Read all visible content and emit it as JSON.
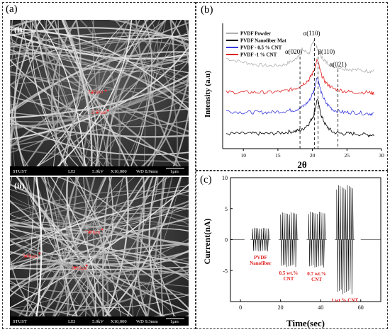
{
  "panels": {
    "a": {
      "label": "(a)"
    },
    "b": {
      "label": "(b)"
    },
    "c": {
      "label": "(c)"
    }
  },
  "sem": [
    {
      "sublabel": "(i)",
      "measurements": [
        "3.63μm",
        "2.77μm"
      ],
      "footer": {
        "institute": "STUST",
        "detector": "LEI",
        "voltage": "5.0kV",
        "magnification": "X10,000",
        "wd": "WD 8.9mm",
        "scale": "1μm"
      }
    },
    {
      "sublabel": "(ii)",
      "measurements": [
        "7.10μm",
        "5.08μm",
        "8.92μm"
      ],
      "footer": {
        "institute": "STUST",
        "detector": "LEI",
        "voltage": "5.0kV",
        "magnification": "X10,000",
        "wd": "WD 9.3mm",
        "scale": "1μm"
      }
    }
  ],
  "chart_data": [
    {
      "type": "line",
      "xlabel": "2θ",
      "ylabel": "Intensity (a.u)",
      "xlim": [
        7,
        30
      ],
      "xticks": [
        10,
        15,
        20,
        25,
        30
      ],
      "legend_position": "top-left",
      "series": [
        {
          "name": "PVDF Powder",
          "color": "#b0b0b0",
          "x": [
            7.5,
            10,
            12,
            14,
            16,
            17.5,
            18.5,
            19.5,
            20.2,
            20.7,
            21.3,
            22,
            23,
            24.5,
            26,
            28,
            29
          ],
          "y": [
            0.72,
            0.69,
            0.67,
            0.66,
            0.67,
            0.71,
            0.79,
            0.76,
            0.86,
            0.8,
            0.73,
            0.69,
            0.66,
            0.64,
            0.63,
            0.62,
            0.62
          ]
        },
        {
          "name": "PVDF Nanofiber Mat",
          "color": "#000000",
          "x": [
            7.5,
            10,
            12,
            14,
            16,
            17.5,
            18.5,
            19.5,
            20.2,
            20.7,
            21.3,
            22,
            23,
            24.5,
            26,
            28,
            29
          ],
          "y": [
            0.12,
            0.12,
            0.12,
            0.12,
            0.13,
            0.14,
            0.15,
            0.2,
            0.27,
            0.4,
            0.26,
            0.18,
            0.13,
            0.12,
            0.12,
            0.11,
            0.11
          ]
        },
        {
          "name": "PVDF - 0.5 % CNT",
          "color": "#3a3ae0",
          "x": [
            7.5,
            10,
            12,
            14,
            16,
            17.5,
            18.5,
            19.5,
            20.2,
            20.7,
            21.3,
            22,
            23,
            24.5,
            26,
            28,
            29
          ],
          "y": [
            0.3,
            0.29,
            0.29,
            0.29,
            0.3,
            0.31,
            0.33,
            0.38,
            0.46,
            0.58,
            0.44,
            0.36,
            0.31,
            0.29,
            0.29,
            0.28,
            0.28
          ]
        },
        {
          "name": "PVDF -1 % CNT",
          "color": "#e02020",
          "x": [
            7.5,
            10,
            12,
            14,
            16,
            17.5,
            18.5,
            19.5,
            20.2,
            20.7,
            21.3,
            22,
            23,
            24.5,
            26,
            28,
            29
          ],
          "y": [
            0.45,
            0.45,
            0.45,
            0.45,
            0.46,
            0.48,
            0.51,
            0.55,
            0.62,
            0.71,
            0.59,
            0.52,
            0.48,
            0.46,
            0.45,
            0.45,
            0.44
          ]
        }
      ],
      "annotations": [
        {
          "text": "α(020)",
          "x": 18.2
        },
        {
          "text": "α(110)",
          "x": 20.3
        },
        {
          "text": "β(110)",
          "x": 20.8
        },
        {
          "text": "α(021)",
          "x": 23.7
        }
      ]
    },
    {
      "type": "line",
      "xlabel": "Time(sec)",
      "ylabel": "Current(nA)",
      "xlim": [
        -5,
        70
      ],
      "ylim": [
        -10,
        10
      ],
      "xticks": [
        0,
        20,
        40,
        60
      ],
      "yticks": [
        -5,
        0,
        5,
        10
      ],
      "bursts": [
        {
          "label": "PVDF\nNanofiber",
          "t_start": 6,
          "t_end": 14,
          "amplitude": 1.9
        },
        {
          "label": "0.5 wt.%\nCNT",
          "t_start": 20,
          "t_end": 28,
          "amplitude": 4.4
        },
        {
          "label": "0.7 wt.%\nCNT",
          "t_start": 34,
          "t_end": 42,
          "amplitude": 4.5
        },
        {
          "label": "1 wt.% CNT",
          "t_start": 48,
          "t_end": 56,
          "amplitude": 8.8
        }
      ]
    }
  ]
}
